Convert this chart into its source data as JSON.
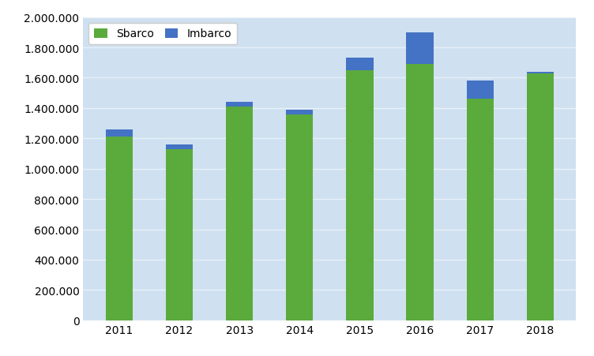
{
  "years": [
    "2011",
    "2012",
    "2013",
    "2014",
    "2015",
    "2016",
    "2017",
    "2018"
  ],
  "sbarco": [
    1210000,
    1130000,
    1410000,
    1360000,
    1650000,
    1690000,
    1460000,
    1630000
  ],
  "imbarco": [
    50000,
    30000,
    30000,
    30000,
    80000,
    210000,
    120000,
    10000
  ],
  "color_sbarco": "#5aab3c",
  "color_imbarco": "#4472c4",
  "legend_labels": [
    "Sbarco",
    "Imbarco"
  ],
  "ylim": [
    0,
    2000000
  ],
  "ytick_step": 200000,
  "plot_bg_color": "#cfe0f0",
  "fig_bg_color": "#ffffff",
  "grid_color": "#e8f0f8",
  "bar_width": 0.45
}
